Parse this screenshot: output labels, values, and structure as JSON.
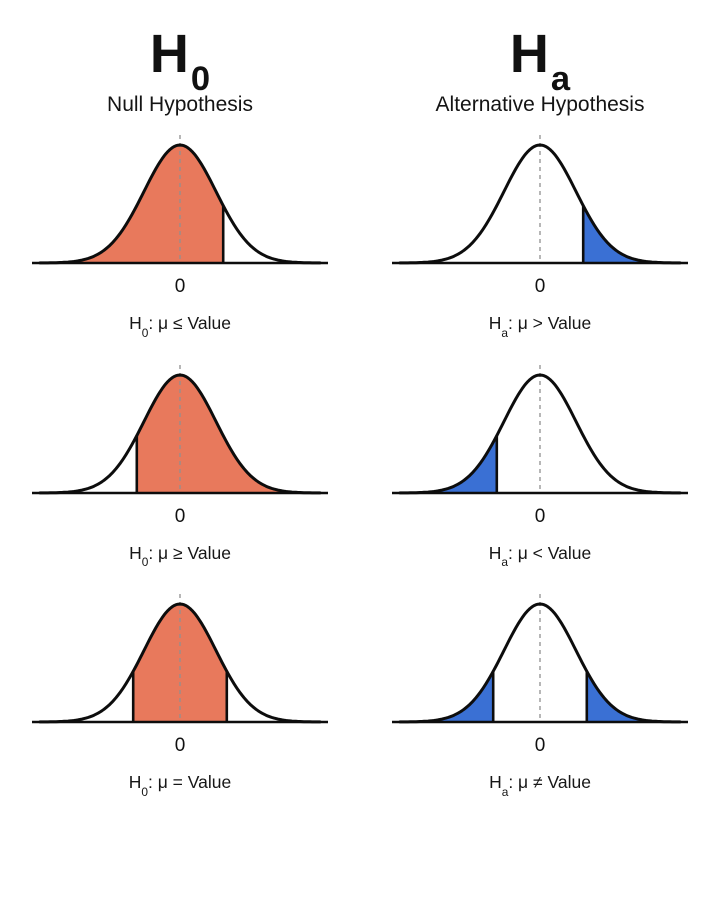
{
  "colors": {
    "null_fill": "#e8795c",
    "alt_fill": "#3a70d4",
    "curve": "#0d0d0d",
    "dash": "#909090",
    "text": "#111111"
  },
  "columns": [
    {
      "symbol_main": "H",
      "symbol_sub": "0",
      "title": "Null Hypothesis"
    },
    {
      "symbol_main": "H",
      "symbol_sub": "a",
      "title": "Alternative Hypothesis"
    }
  ],
  "panels": [
    {
      "side": "null",
      "shade": "below",
      "cutoffs": [
        1.2
      ],
      "zero_label": "0",
      "caption": {
        "prefix": "H",
        "sub": "0",
        "rest": ": μ ≤ Value"
      }
    },
    {
      "side": "alt",
      "shade": "above",
      "cutoffs": [
        1.2
      ],
      "zero_label": "0",
      "caption": {
        "prefix": "H",
        "sub": "a",
        "rest": ": μ > Value"
      }
    },
    {
      "side": "null",
      "shade": "above",
      "cutoffs": [
        -1.2
      ],
      "zero_label": "0",
      "caption": {
        "prefix": "H",
        "sub": "0",
        "rest": ": μ ≥ Value"
      }
    },
    {
      "side": "alt",
      "shade": "below",
      "cutoffs": [
        -1.2
      ],
      "zero_label": "0",
      "caption": {
        "prefix": "H",
        "sub": "a",
        "rest": ": μ < Value"
      }
    },
    {
      "side": "null",
      "shade": "between",
      "cutoffs": [
        -1.3,
        1.3
      ],
      "zero_label": "0",
      "caption": {
        "prefix": "H",
        "sub": "0",
        "rest": ": μ = Value"
      }
    },
    {
      "side": "alt",
      "shade": "outside",
      "cutoffs": [
        -1.3,
        1.3
      ],
      "zero_label": "0",
      "caption": {
        "prefix": "H",
        "sub": "a",
        "rest": ": μ ≠ Value"
      }
    }
  ]
}
